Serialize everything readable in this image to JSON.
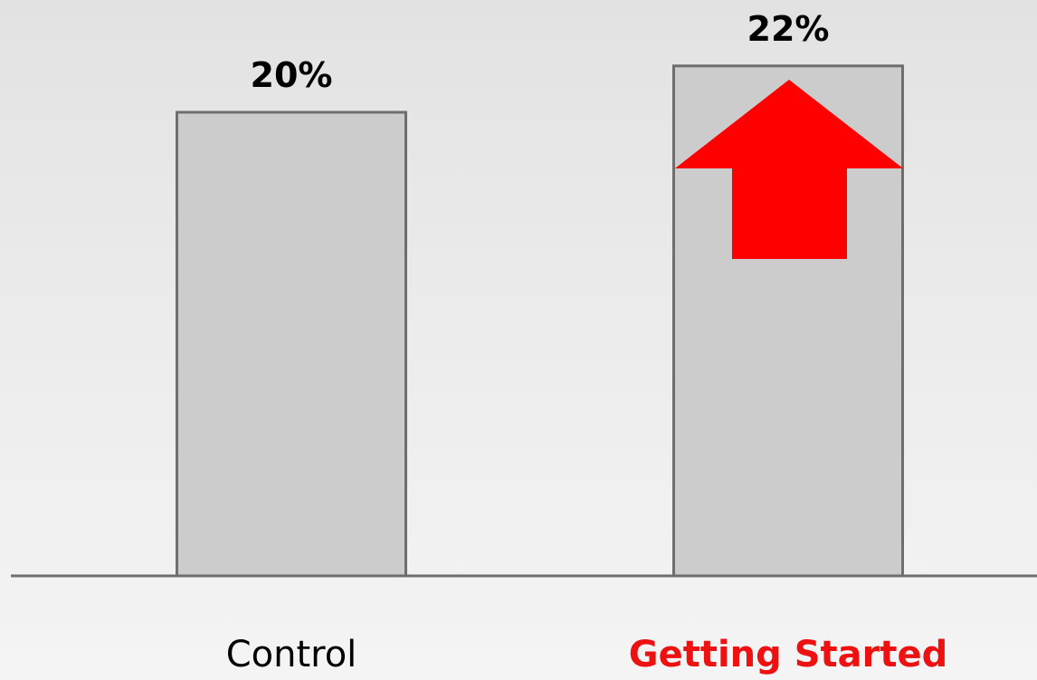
{
  "chart_data": {
    "type": "bar",
    "categories": [
      "Control",
      "Getting Started"
    ],
    "values": [
      20,
      22
    ],
    "value_labels": [
      "20%",
      "22%"
    ],
    "title": "",
    "xlabel": "",
    "ylabel": "",
    "ylim": [
      0,
      24
    ],
    "grid": false,
    "highlight_category": "Getting Started",
    "annotation": "up-arrow-icon"
  },
  "colors": {
    "bar_fill": "#cccccc",
    "bar_stroke": "#6e6e6e",
    "axis": "#6e6e6e",
    "text": "#000000",
    "highlight": "#ee1111",
    "arrow": "#ff0000"
  }
}
